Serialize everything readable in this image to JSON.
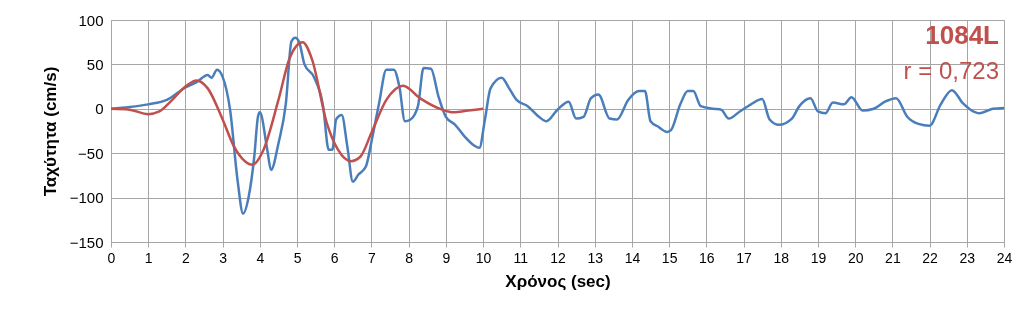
{
  "chart_data": {
    "type": "line",
    "xlabel": "Χρόνος (sec)",
    "ylabel": "Ταχύτητα (cm/s)",
    "annotations": [
      "1084L",
      "r = 0,723"
    ],
    "xlim": [
      0,
      24
    ],
    "xticks": [
      0,
      1,
      2,
      3,
      4,
      5,
      6,
      7,
      8,
      9,
      10,
      11,
      12,
      13,
      14,
      15,
      16,
      17,
      18,
      19,
      20,
      21,
      22,
      23,
      24
    ],
    "ylim": [
      -150,
      100
    ],
    "yticks": [
      -150,
      -100,
      -50,
      0,
      50,
      100
    ],
    "grid": true,
    "line_style": "solid",
    "series": [
      {
        "color": "#4a7ebb",
        "x": [
          0,
          0.5,
          1,
          1.5,
          2,
          2.3,
          2.6,
          2.7,
          2.85,
          3.0,
          3.2,
          3.4,
          3.55,
          3.7,
          3.85,
          3.95,
          4.0,
          4.2,
          4.3,
          4.5,
          4.7,
          4.85,
          4.95,
          5.05,
          5.2,
          5.45,
          5.7,
          5.85,
          5.95,
          6.05,
          6.2,
          6.35,
          6.5,
          6.65,
          6.85,
          7.0,
          7.2,
          7.4,
          7.6,
          7.75,
          7.9,
          8.05,
          8.25,
          8.4,
          8.6,
          8.8,
          9.0,
          9.25,
          9.5,
          9.75,
          9.9,
          10.05,
          10.2,
          10.5,
          10.7,
          10.9,
          11.2,
          11.5,
          11.7,
          12.0,
          12.3,
          12.5,
          12.7,
          12.9,
          13.1,
          13.4,
          13.6,
          13.9,
          14.2,
          14.35,
          14.5,
          14.7,
          14.95,
          15.05,
          15.3,
          15.5,
          15.65,
          15.85,
          16.2,
          16.4,
          16.6,
          16.9,
          17.2,
          17.5,
          17.7,
          17.95,
          18.3,
          18.5,
          18.8,
          19.0,
          19.2,
          19.4,
          19.7,
          19.9,
          20.2,
          20.5,
          20.8,
          21.1,
          21.4,
          21.7,
          22.0,
          22.3,
          22.6,
          22.9,
          23.1,
          23.35,
          23.7,
          24
        ],
        "values": [
          0,
          2,
          5,
          10,
          24,
          30,
          38,
          35,
          44,
          36,
          -1,
          -80,
          -118,
          -99,
          -54,
          -9,
          -4,
          -46,
          -69,
          -39,
          6,
          76,
          80,
          76,
          50,
          36,
          3,
          -46,
          -46,
          -12,
          -7,
          -42,
          -82,
          -74,
          -65,
          -37,
          5,
          44,
          44,
          25,
          -14,
          -12,
          3,
          46,
          45,
          14,
          -9,
          -18,
          -31,
          -41,
          -44,
          -12,
          23,
          35,
          23,
          10,
          3,
          -9,
          -14,
          -1,
          8,
          -11,
          -9,
          12,
          16,
          -11,
          -12,
          10,
          20,
          20,
          -14,
          -20,
          -26,
          -24,
          5,
          20,
          20,
          3,
          0,
          -1,
          -11,
          -3,
          5,
          11,
          -12,
          -18,
          -11,
          3,
          12,
          -3,
          -5,
          7,
          5,
          13,
          -2,
          0,
          8,
          12,
          -9,
          -17,
          -19,
          5,
          21,
          6,
          -1,
          -5,
          0,
          1
        ]
      },
      {
        "color": "#c0504d",
        "x": [
          0,
          0.5,
          1,
          1.3,
          1.6,
          2,
          2.3,
          2.6,
          3,
          3.3,
          3.6,
          3.8,
          4.1,
          4.5,
          4.8,
          5.15,
          5.4,
          5.8,
          6.1,
          6.45,
          6.7,
          7.0,
          7.4,
          7.85,
          8.3,
          8.9,
          9.2,
          9.6,
          10
        ],
        "values": [
          0,
          -1,
          -6,
          -3,
          8,
          25,
          32,
          23,
          -12,
          -42,
          -59,
          -63,
          -46,
          10,
          57,
          75,
          56,
          -16,
          -46,
          -59,
          -54,
          -27,
          10,
          26,
          12,
          -1,
          -4,
          -2,
          0
        ]
      }
    ]
  }
}
